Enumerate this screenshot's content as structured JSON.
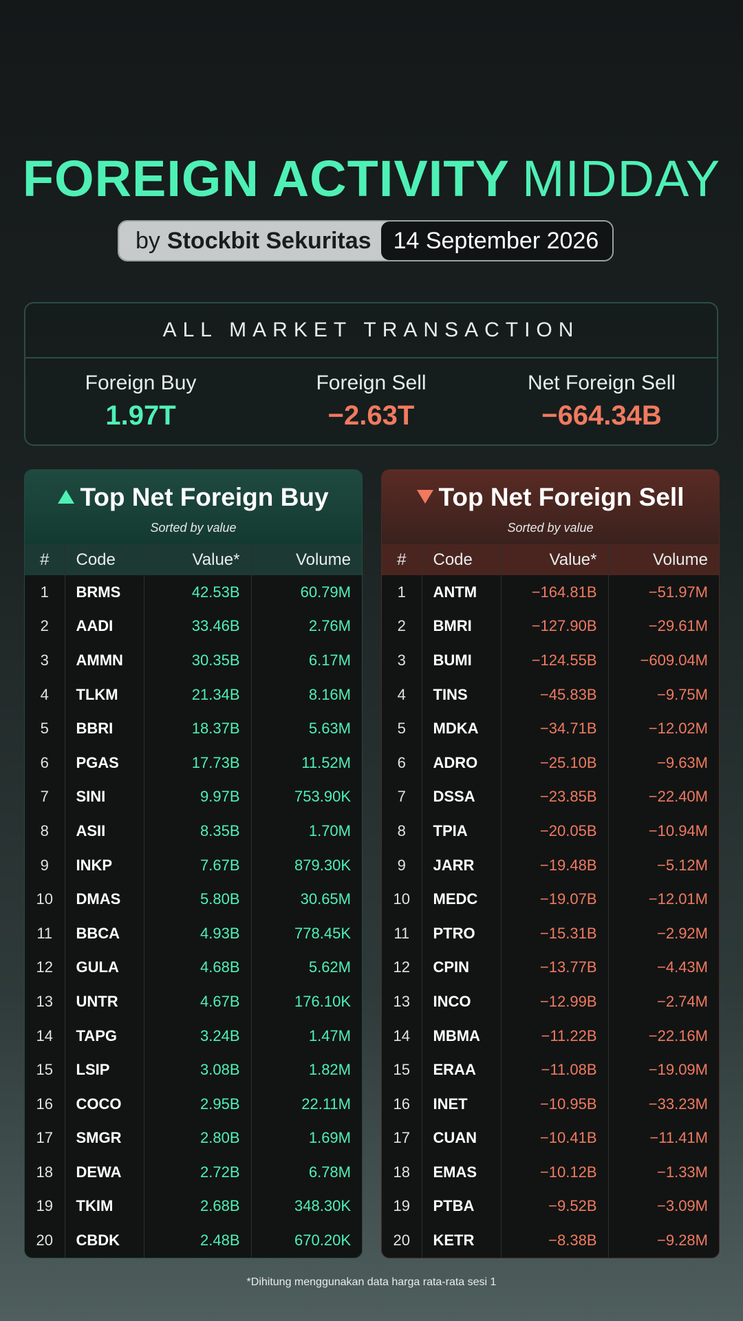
{
  "header": {
    "title_bold": "FOREIGN ACTIVITY",
    "title_light": "MIDDAY",
    "by_prefix": "by",
    "brand": "Stockbit Sekuritas",
    "date": "14 September 2026"
  },
  "market": {
    "title": "ALL MARKET TRANSACTION",
    "foreign_buy_label": "Foreign Buy",
    "foreign_buy_value": "1.97T",
    "foreign_sell_label": "Foreign Sell",
    "foreign_sell_value": "−2.63T",
    "net_label": "Net Foreign Sell",
    "net_value": "−664.34B"
  },
  "buy_table": {
    "title": "Top Net Foreign Buy",
    "subtitle": "Sorted by value",
    "columns": [
      "#",
      "Code",
      "Value*",
      "Volume"
    ],
    "rows": [
      {
        "rank": "1",
        "code": "BRMS",
        "value": "42.53B",
        "volume": "60.79M"
      },
      {
        "rank": "2",
        "code": "AADI",
        "value": "33.46B",
        "volume": "2.76M"
      },
      {
        "rank": "3",
        "code": "AMMN",
        "value": "30.35B",
        "volume": "6.17M"
      },
      {
        "rank": "4",
        "code": "TLKM",
        "value": "21.34B",
        "volume": "8.16M"
      },
      {
        "rank": "5",
        "code": "BBRI",
        "value": "18.37B",
        "volume": "5.63M"
      },
      {
        "rank": "6",
        "code": "PGAS",
        "value": "17.73B",
        "volume": "11.52M"
      },
      {
        "rank": "7",
        "code": "SINI",
        "value": "9.97B",
        "volume": "753.90K"
      },
      {
        "rank": "8",
        "code": "ASII",
        "value": "8.35B",
        "volume": "1.70M"
      },
      {
        "rank": "9",
        "code": "INKP",
        "value": "7.67B",
        "volume": "879.30K"
      },
      {
        "rank": "10",
        "code": "DMAS",
        "value": "5.80B",
        "volume": "30.65M"
      },
      {
        "rank": "11",
        "code": "BBCA",
        "value": "4.93B",
        "volume": "778.45K"
      },
      {
        "rank": "12",
        "code": "GULA",
        "value": "4.68B",
        "volume": "5.62M"
      },
      {
        "rank": "13",
        "code": "UNTR",
        "value": "4.67B",
        "volume": "176.10K"
      },
      {
        "rank": "14",
        "code": "TAPG",
        "value": "3.24B",
        "volume": "1.47M"
      },
      {
        "rank": "15",
        "code": "LSIP",
        "value": "3.08B",
        "volume": "1.82M"
      },
      {
        "rank": "16",
        "code": "COCO",
        "value": "2.95B",
        "volume": "22.11M"
      },
      {
        "rank": "17",
        "code": "SMGR",
        "value": "2.80B",
        "volume": "1.69M"
      },
      {
        "rank": "18",
        "code": "DEWA",
        "value": "2.72B",
        "volume": "6.78M"
      },
      {
        "rank": "19",
        "code": "TKIM",
        "value": "2.68B",
        "volume": "348.30K"
      },
      {
        "rank": "20",
        "code": "CBDK",
        "value": "2.48B",
        "volume": "670.20K"
      }
    ]
  },
  "sell_table": {
    "title": "Top Net Foreign Sell",
    "subtitle": "Sorted by value",
    "columns": [
      "#",
      "Code",
      "Value*",
      "Volume"
    ],
    "rows": [
      {
        "rank": "1",
        "code": "ANTM",
        "value": "−164.81B",
        "volume": "−51.97M"
      },
      {
        "rank": "2",
        "code": "BMRI",
        "value": "−127.90B",
        "volume": "−29.61M"
      },
      {
        "rank": "3",
        "code": "BUMI",
        "value": "−124.55B",
        "volume": "−609.04M"
      },
      {
        "rank": "4",
        "code": "TINS",
        "value": "−45.83B",
        "volume": "−9.75M"
      },
      {
        "rank": "5",
        "code": "MDKA",
        "value": "−34.71B",
        "volume": "−12.02M"
      },
      {
        "rank": "6",
        "code": "ADRO",
        "value": "−25.10B",
        "volume": "−9.63M"
      },
      {
        "rank": "7",
        "code": "DSSA",
        "value": "−23.85B",
        "volume": "−22.40M"
      },
      {
        "rank": "8",
        "code": "TPIA",
        "value": "−20.05B",
        "volume": "−10.94M"
      },
      {
        "rank": "9",
        "code": "JARR",
        "value": "−19.48B",
        "volume": "−5.12M"
      },
      {
        "rank": "10",
        "code": "MEDC",
        "value": "−19.07B",
        "volume": "−12.01M"
      },
      {
        "rank": "11",
        "code": "PTRO",
        "value": "−15.31B",
        "volume": "−2.92M"
      },
      {
        "rank": "12",
        "code": "CPIN",
        "value": "−13.77B",
        "volume": "−4.43M"
      },
      {
        "rank": "13",
        "code": "INCO",
        "value": "−12.99B",
        "volume": "−2.74M"
      },
      {
        "rank": "14",
        "code": "MBMA",
        "value": "−11.22B",
        "volume": "−22.16M"
      },
      {
        "rank": "15",
        "code": "ERAA",
        "value": "−11.08B",
        "volume": "−19.09M"
      },
      {
        "rank": "16",
        "code": "INET",
        "value": "−10.95B",
        "volume": "−33.23M"
      },
      {
        "rank": "17",
        "code": "CUAN",
        "value": "−10.41B",
        "volume": "−11.41M"
      },
      {
        "rank": "18",
        "code": "EMAS",
        "value": "−10.12B",
        "volume": "−1.33M"
      },
      {
        "rank": "19",
        "code": "PTBA",
        "value": "−9.52B",
        "volume": "−3.09M"
      },
      {
        "rank": "20",
        "code": "KETR",
        "value": "−8.38B",
        "volume": "−9.28M"
      }
    ]
  },
  "footnote": "*Dihitung menggunakan data harga rata-rata sesi 1",
  "colors": {
    "buy_accent": "#4ff0b5",
    "sell_accent": "#f07a5f"
  },
  "icons": {
    "buy": "triangle-up-icon",
    "sell": "triangle-down-icon"
  }
}
